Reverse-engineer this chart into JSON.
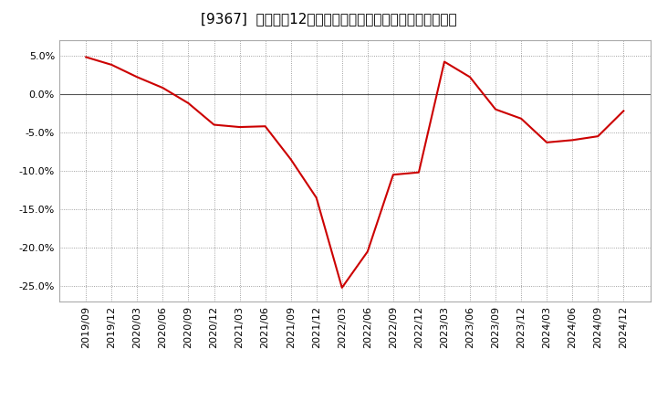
{
  "title": "[9367]  売上高の12か月移動合計の対前年同期増減率の推移",
  "x_labels": [
    "2019/09",
    "2019/12",
    "2020/03",
    "2020/06",
    "2020/09",
    "2020/12",
    "2021/03",
    "2021/06",
    "2021/09",
    "2021/12",
    "2022/03",
    "2022/06",
    "2022/09",
    "2022/12",
    "2023/03",
    "2023/06",
    "2023/09",
    "2023/12",
    "2024/03",
    "2024/06",
    "2024/09",
    "2024/12"
  ],
  "y_values": [
    4.8,
    3.8,
    2.2,
    0.8,
    -1.2,
    -4.0,
    -4.3,
    -4.2,
    -8.5,
    -13.5,
    -25.2,
    -20.5,
    -10.5,
    -10.2,
    4.2,
    2.2,
    -2.0,
    -3.2,
    -6.3,
    -6.0,
    -5.5,
    -2.2
  ],
  "line_color": "#cc0000",
  "line_width": 1.5,
  "bg_color": "#ffffff",
  "plot_bg_color": "#ffffff",
  "grid_color": "#888888",
  "zero_line_color": "#555555",
  "ylim": [
    -27,
    7
  ],
  "yticks": [
    -25.0,
    -20.0,
    -15.0,
    -10.0,
    -5.0,
    0.0,
    5.0
  ],
  "title_fontsize": 11,
  "tick_fontsize": 8
}
